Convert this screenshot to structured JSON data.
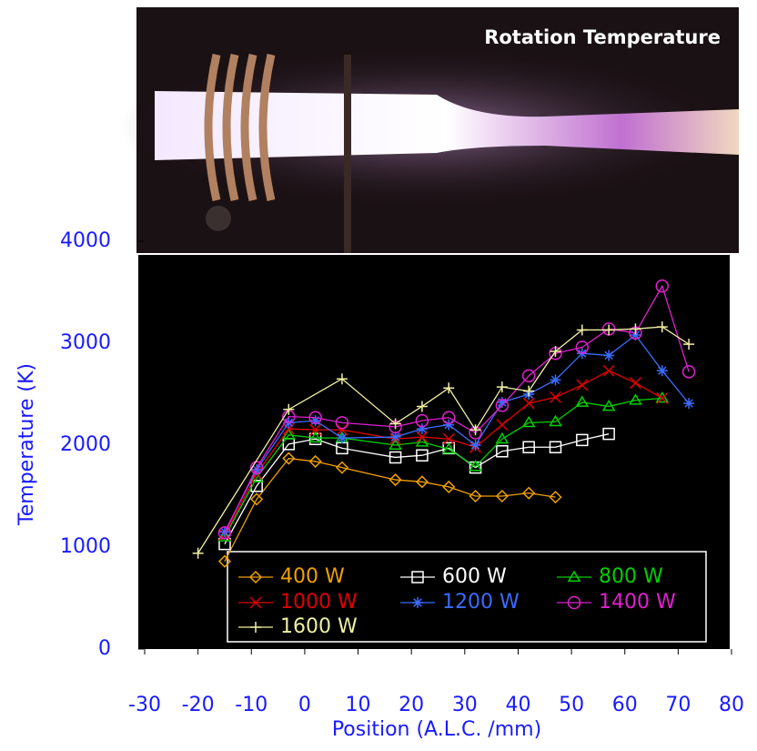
{
  "chart_data": {
    "type": "line",
    "title": "Rotation Temperature",
    "xlabel": "Position (A.L.C. /mm)",
    "ylabel": "Temperature (K)",
    "xlim": [
      -30,
      80
    ],
    "xticks": [
      -30,
      -20,
      -10,
      0,
      10,
      20,
      30,
      40,
      50,
      60,
      70,
      80
    ],
    "ylim": [
      0,
      4000
    ],
    "yticks": [
      0,
      1000,
      2000,
      3000,
      4000
    ],
    "series": [
      {
        "name": "400 W",
        "color": "#f0a000",
        "marker": "diamond",
        "x": [
          -15,
          -9,
          -3,
          2,
          7,
          17,
          22,
          27,
          32,
          37,
          42,
          47
        ],
        "values": [
          860,
          1470,
          1870,
          1840,
          1780,
          1660,
          1640,
          1590,
          1500,
          1500,
          1530,
          1490
        ]
      },
      {
        "name": "600 W",
        "color": "#ffffff",
        "marker": "square",
        "x": [
          -15,
          -9,
          -3,
          2,
          7,
          17,
          22,
          27,
          32,
          37,
          42,
          47,
          52,
          57
        ],
        "values": [
          1030,
          1600,
          2010,
          2060,
          1970,
          1880,
          1900,
          1970,
          1780,
          1940,
          1980,
          1980,
          2050,
          2110
        ]
      },
      {
        "name": "800 W",
        "color": "#00d000",
        "marker": "triangle",
        "x": [
          -15,
          -9,
          -3,
          2,
          7,
          17,
          22,
          27,
          32,
          37,
          42,
          47,
          52,
          57,
          62,
          67
        ],
        "values": [
          1100,
          1680,
          2100,
          2070,
          2070,
          2000,
          2030,
          1960,
          1790,
          2060,
          2220,
          2230,
          2420,
          2380,
          2440,
          2460
        ]
      },
      {
        "name": "1000 W",
        "color": "#e00000",
        "marker": "x",
        "x": [
          -15,
          -9,
          -3,
          2,
          7,
          17,
          22,
          27,
          32,
          37,
          42,
          47,
          52,
          57,
          62,
          67
        ],
        "values": [
          1120,
          1720,
          2160,
          2150,
          2150,
          2060,
          2080,
          2060,
          1980,
          2200,
          2410,
          2470,
          2590,
          2730,
          2610,
          2460
        ]
      },
      {
        "name": "1200 W",
        "color": "#3a6cff",
        "marker": "star",
        "x": [
          -15,
          -9,
          -3,
          2,
          7,
          17,
          22,
          27,
          32,
          37,
          42,
          47,
          52,
          57,
          62,
          67,
          72
        ],
        "values": [
          1150,
          1760,
          2220,
          2240,
          2070,
          2080,
          2160,
          2200,
          2000,
          2420,
          2500,
          2640,
          2900,
          2880,
          3080,
          2730,
          2410
        ]
      },
      {
        "name": "1400 W",
        "color": "#e020d0",
        "marker": "circle",
        "x": [
          -15,
          -9,
          -3,
          2,
          7,
          17,
          22,
          27,
          32,
          37,
          42,
          47,
          52,
          57,
          62,
          67,
          72
        ],
        "values": [
          1140,
          1780,
          2280,
          2270,
          2220,
          2180,
          2240,
          2270,
          2120,
          2390,
          2680,
          2900,
          2960,
          3140,
          3100,
          3560,
          2720
        ]
      },
      {
        "name": "1600 W",
        "color": "#f0f0a0",
        "marker": "plus",
        "x": [
          -20,
          -3,
          7,
          17,
          22,
          27,
          32,
          37,
          42,
          47,
          52,
          57,
          62,
          67,
          72
        ],
        "values": [
          940,
          2350,
          2650,
          2210,
          2380,
          2560,
          2150,
          2570,
          2530,
          2920,
          3130,
          3130,
          3140,
          3160,
          2990
        ]
      }
    ]
  }
}
